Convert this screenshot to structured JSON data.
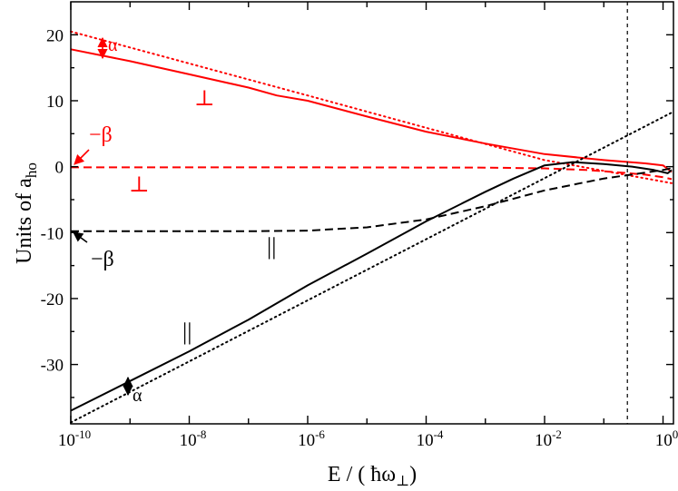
{
  "chart_data": {
    "type": "line",
    "xlabel_main": "E / ( ",
    "xlabel_hbar": "ħ",
    "xlabel_omega": "ω",
    "xlabel_sub": "⊥",
    "xlabel_close": ")",
    "ylabel_main": "Units of a",
    "ylabel_sub": "ho",
    "x_scale": "log",
    "xlim": [
      1e-10,
      1.5
    ],
    "ylim": [
      -39,
      25
    ],
    "x_ticks": [
      {
        "value": 1e-10,
        "base": "10",
        "exp": "-10"
      },
      {
        "value": 1e-08,
        "base": "10",
        "exp": "-8"
      },
      {
        "value": 1e-06,
        "base": "10",
        "exp": "-6"
      },
      {
        "value": 0.0001,
        "base": "10",
        "exp": "-4"
      },
      {
        "value": 0.01,
        "base": "10",
        "exp": "-2"
      },
      {
        "value": 1,
        "base": "10",
        "exp": "0"
      }
    ],
    "y_ticks": [
      {
        "value": 20,
        "label": "20"
      },
      {
        "value": 10,
        "label": "10"
      },
      {
        "value": 0,
        "label": "0"
      },
      {
        "value": -10,
        "label": "-10"
      },
      {
        "value": -20,
        "label": "-20"
      },
      {
        "value": -30,
        "label": "-30"
      }
    ],
    "vertical_line_x": 0.25,
    "series": [
      {
        "style": "solid",
        "color": "#ff0000",
        "x": [
          1e-10,
          1e-09,
          1e-08,
          1e-07,
          3e-07,
          1e-06,
          1e-05,
          0.0001,
          0.001,
          0.01,
          0.1,
          0.5,
          1.0,
          1.4
        ],
        "y": [
          17.8,
          16.0,
          14.0,
          12.0,
          10.8,
          10.0,
          7.6,
          5.3,
          3.5,
          1.9,
          1.0,
          0.5,
          0.2,
          -0.8
        ]
      },
      {
        "style": "dotted",
        "color": "#ff0000",
        "x": [
          1e-10,
          1e-06,
          0.01,
          1.4
        ],
        "y": [
          20.5,
          10.8,
          1.0,
          -2.5
        ]
      },
      {
        "style": "dashed",
        "color": "#ff0000",
        "x": [
          1e-10,
          1e-06,
          0.001,
          0.01,
          0.05,
          0.2,
          0.5,
          1.0,
          1.4
        ],
        "y": [
          -0.1,
          -0.1,
          -0.15,
          -0.25,
          -0.5,
          -0.9,
          -1.2,
          -1.6,
          -1.9
        ]
      },
      {
        "style": "solid",
        "color": "#000000",
        "x": [
          1e-10,
          1e-09,
          1e-08,
          1e-07,
          1e-06,
          1e-05,
          0.0001,
          0.001,
          0.003,
          0.01,
          0.03,
          0.1,
          0.3,
          0.7,
          1.2,
          1.4
        ],
        "y": [
          -37.0,
          -32.5,
          -28.0,
          -23.2,
          -18.0,
          -13.2,
          -8.3,
          -3.8,
          -1.8,
          0.2,
          0.7,
          0.4,
          0.0,
          -0.5,
          -1.0,
          -0.5
        ]
      },
      {
        "style": "dotted",
        "color": "#000000",
        "x": [
          1e-10,
          1.4
        ],
        "y": [
          -38.8,
          8.2
        ]
      },
      {
        "style": "dashed",
        "color": "#000000",
        "x": [
          1e-10,
          1e-07,
          1e-06,
          1e-05,
          0.0001,
          0.001,
          0.01,
          0.1,
          0.5,
          1.0,
          1.3,
          1.4
        ],
        "y": [
          -9.8,
          -9.8,
          -9.7,
          -9.2,
          -8.0,
          -6.0,
          -3.6,
          -1.8,
          -0.9,
          -0.5,
          -0.3,
          -1.0
        ]
      }
    ],
    "annotations": [
      {
        "text": "α",
        "color": "#ff0000"
      },
      {
        "text": "⊥",
        "color": "#ff0000"
      },
      {
        "text": "−β",
        "color": "#ff0000"
      },
      {
        "text": "⊥",
        "color": "#ff0000"
      },
      {
        "text": "−β",
        "color": "#000000"
      },
      {
        "text": "||",
        "color": "#000000"
      },
      {
        "text": "||",
        "color": "#000000"
      },
      {
        "text": "α",
        "color": "#000000"
      }
    ]
  }
}
